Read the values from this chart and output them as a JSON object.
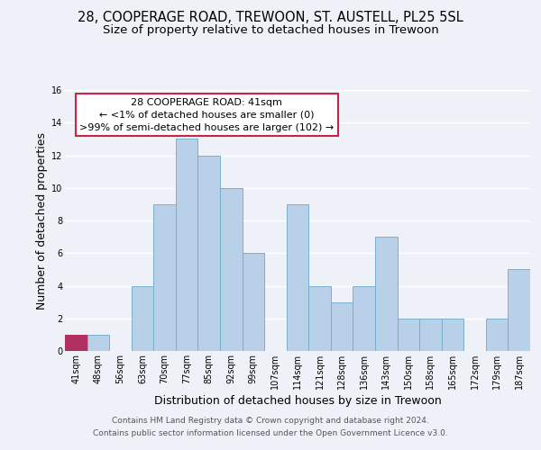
{
  "title": "28, COOPERAGE ROAD, TREWOON, ST. AUSTELL, PL25 5SL",
  "subtitle": "Size of property relative to detached houses in Trewoon",
  "xlabel": "Distribution of detached houses by size in Trewoon",
  "ylabel": "Number of detached properties",
  "bin_labels": [
    "41sqm",
    "48sqm",
    "56sqm",
    "63sqm",
    "70sqm",
    "77sqm",
    "85sqm",
    "92sqm",
    "99sqm",
    "107sqm",
    "114sqm",
    "121sqm",
    "128sqm",
    "136sqm",
    "143sqm",
    "150sqm",
    "158sqm",
    "165sqm",
    "172sqm",
    "179sqm",
    "187sqm"
  ],
  "bar_heights": [
    1,
    1,
    0,
    4,
    9,
    13,
    12,
    10,
    6,
    0,
    9,
    4,
    3,
    4,
    7,
    2,
    2,
    2,
    0,
    2,
    5
  ],
  "bar_color": "#b8d0e8",
  "bar_edge_color": "#7aaed0",
  "highlight_bar_index": 0,
  "highlight_bar_color": "#b03060",
  "annotation_line1": "28 COOPERAGE ROAD: 41sqm",
  "annotation_line2": "← <1% of detached houses are smaller (0)",
  "annotation_line3": ">99% of semi-detached houses are larger (102) →",
  "annotation_box_edge_color": "#cc2244",
  "annotation_box_bg": "#ffffff",
  "ylim": [
    0,
    16
  ],
  "yticks": [
    0,
    2,
    4,
    6,
    8,
    10,
    12,
    14,
    16
  ],
  "footer_line1": "Contains HM Land Registry data © Crown copyright and database right 2024.",
  "footer_line2": "Contains public sector information licensed under the Open Government Licence v3.0.",
  "bg_color": "#eef2f8",
  "grid_color": "#ffffff",
  "plot_bg_color": "#eef2f8",
  "title_fontsize": 10.5,
  "subtitle_fontsize": 9.5,
  "axis_label_fontsize": 9,
  "tick_fontsize": 7,
  "annotation_fontsize": 8,
  "footer_fontsize": 6.5
}
